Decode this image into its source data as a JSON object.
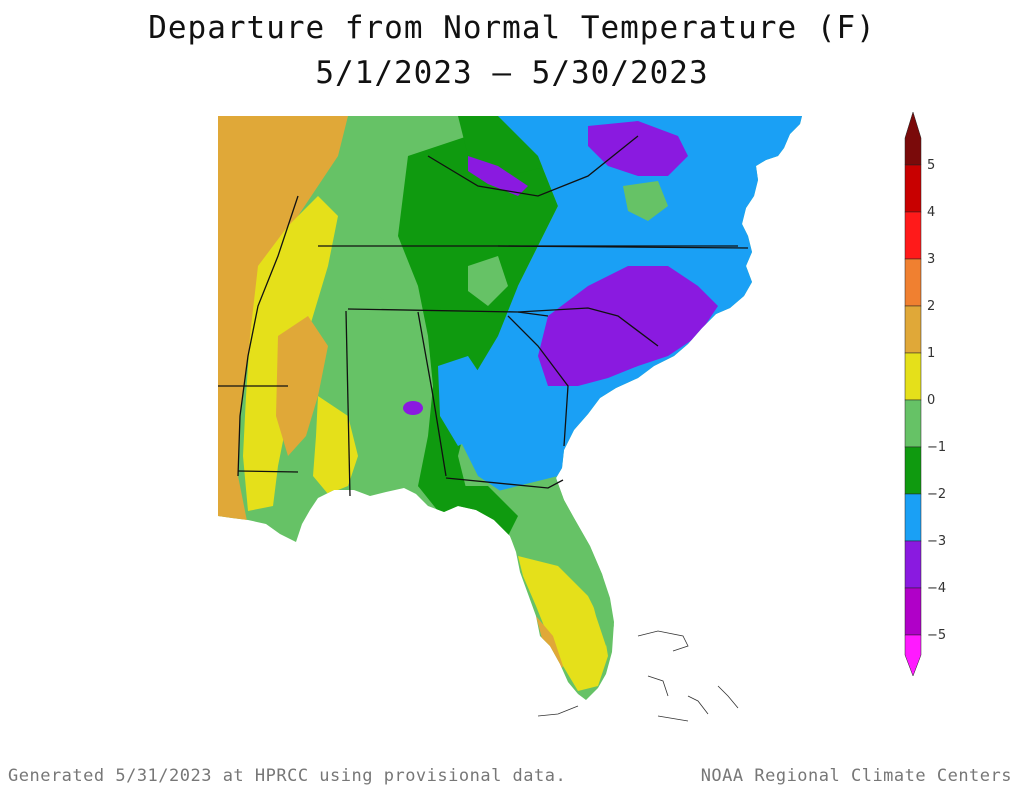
{
  "title": "Departure from Normal Temperature (F)",
  "date_range": "5/1/2023 – 5/30/2023",
  "footer": {
    "left": "Generated 5/31/2023 at HPRCC using provisional data.",
    "right": "NOAA Regional Climate Centers"
  },
  "legend": {
    "bins": [
      {
        "from": 5,
        "to": 6,
        "color": "#7a0a0a"
      },
      {
        "from": 4,
        "to": 5,
        "color": "#c80000"
      },
      {
        "from": 3,
        "to": 4,
        "color": "#ff1a1a"
      },
      {
        "from": 2,
        "to": 3,
        "color": "#f08030"
      },
      {
        "from": 1,
        "to": 2,
        "color": "#e0a838"
      },
      {
        "from": 0,
        "to": 1,
        "color": "#e5e01a"
      },
      {
        "from": -1,
        "to": 0,
        "color": "#66c266"
      },
      {
        "from": -2,
        "to": -1,
        "color": "#0f9a0f"
      },
      {
        "from": -3,
        "to": -2,
        "color": "#1aa0f5"
      },
      {
        "from": -4,
        "to": -3,
        "color": "#8a1ae0"
      },
      {
        "from": -5,
        "to": -4,
        "color": "#b000c8"
      },
      {
        "from": -6,
        "to": -5,
        "color": "#ff1aff"
      }
    ],
    "labels": [
      "5",
      "4",
      "3",
      "2",
      "1",
      "0",
      "−1",
      "−2",
      "−3",
      "−4",
      "−5"
    ]
  },
  "map_colors": {
    "orange": "#e0a838",
    "yellow": "#e5e01a",
    "light_green": "#66c266",
    "green": "#0f9a0f",
    "blue": "#1aa0f5",
    "purple": "#8a1ae0",
    "magenta": "#b000c8",
    "water": "#ffffff",
    "border": "#111111"
  }
}
